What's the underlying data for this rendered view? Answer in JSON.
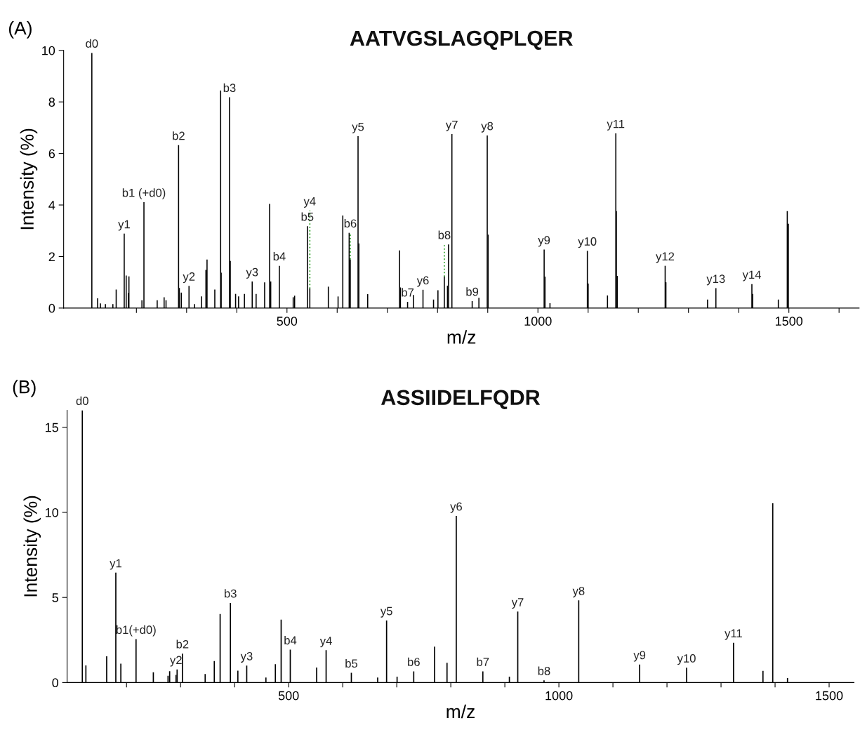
{
  "chart_data": [
    {
      "type": "bar",
      "title": "AATVGSLAGQPLQER",
      "xlabel": "m/z",
      "ylabel": "Intensity (%)",
      "color": "#000000",
      "x": [
        111.2,
        122.7,
        128.3,
        138.2,
        153.1,
        159.7,
        175.7,
        179.6,
        184,
        185.1,
        211,
        215,
        241.4,
        255.2,
        259,
        284,
        285.5,
        289.4,
        304.8,
        315.9,
        329.7,
        338.5,
        340.7,
        356.2,
        367.8,
        368.9,
        385.5,
        387,
        397.6,
        403.6,
        415.2,
        430.7,
        438.5,
        455.5,
        465.4,
        467.6,
        484.8,
        512.4,
        515.2,
        540.6,
        545.5,
        582.4,
        601.8,
        611.2,
        623.9,
        626.1,
        641.6,
        643.2,
        660.8,
        724.3,
        726,
        740.3,
        751.9,
        771,
        792,
        800.8,
        813.5,
        819.8,
        821.9,
        828.6,
        869,
        882.4,
        899,
        900.7,
        1012.4,
        1014.1,
        1024,
        1098.5,
        1100.1,
        1138.6,
        1155.2,
        1156.3,
        1158,
        1253.5,
        1255,
        1338,
        1354.6,
        1426.3,
        1427.9,
        1479,
        1496.8,
        1499
      ],
      "values": [
        9.9,
        0.38,
        0.18,
        0.15,
        0.15,
        0.72,
        2.89,
        1.26,
        0.58,
        1.23,
        0.3,
        4.11,
        0.3,
        0.42,
        0.3,
        6.32,
        0.78,
        0.6,
        0.86,
        0.15,
        0.45,
        1.48,
        1.88,
        0.72,
        8.44,
        1.37,
        8.18,
        1.83,
        0.55,
        0.45,
        0.55,
        1.03,
        0.55,
        1.0,
        4.04,
        1.03,
        1.64,
        0.42,
        0.48,
        3.18,
        0.76,
        0.83,
        0.45,
        3.59,
        2.92,
        1.89,
        6.67,
        2.51,
        0.54,
        2.24,
        0.8,
        0.24,
        0.51,
        0.71,
        0.33,
        0.69,
        1.22,
        0.87,
        2.47,
        6.75,
        0.27,
        0.4,
        6.7,
        2.85,
        2.27,
        1.22,
        0.19,
        2.22,
        0.95,
        0.49,
        6.78,
        3.76,
        1.25,
        1.64,
        1.0,
        0.33,
        0.77,
        0.93,
        0.55,
        0.33,
        3.76,
        3.27
      ],
      "value_labels": [
        "d0",
        null,
        null,
        null,
        null,
        null,
        "y1",
        null,
        null,
        null,
        null,
        "b1 (+d0)",
        null,
        null,
        null,
        "b2",
        null,
        null,
        "y2",
        null,
        null,
        null,
        null,
        null,
        null,
        null,
        "b3",
        null,
        null,
        null,
        null,
        "y3",
        null,
        null,
        null,
        null,
        "b4",
        null,
        null,
        "b5",
        "y4",
        null,
        null,
        null,
        null,
        "b6",
        "y5",
        null,
        null,
        null,
        null,
        "b7",
        null,
        "y6",
        null,
        null,
        "b8",
        null,
        null,
        "y7",
        "b9",
        null,
        "y8",
        null,
        "y9",
        null,
        null,
        "y10",
        null,
        null,
        "y11",
        null,
        null,
        "y12",
        null,
        null,
        "y13",
        "y14",
        null,
        null,
        null,
        null
      ],
      "xlim": [
        55,
        1640
      ],
      "ylim": [
        0,
        10
      ],
      "xticks": [
        {
          "value": 200,
          "label": null
        },
        {
          "value": 300,
          "label": null
        },
        {
          "value": 400,
          "label": null
        },
        500,
        {
          "value": 600,
          "label": null
        },
        {
          "value": 700,
          "label": null
        },
        {
          "value": 800,
          "label": null
        },
        {
          "value": 900,
          "label": null
        },
        1000,
        {
          "value": 1100,
          "label": null
        },
        {
          "value": 1200,
          "label": null
        },
        {
          "value": 1300,
          "label": null
        },
        {
          "value": 1400,
          "label": null
        },
        1500,
        {
          "value": 1600,
          "label": null
        }
      ],
      "yticks": [
        0,
        2,
        4,
        6,
        8,
        10
      ],
      "grid": false,
      "legend": false,
      "annotations": [
        "(A)"
      ]
    },
    {
      "type": "bar",
      "title": "ASSIIDELFQDR",
      "xlabel": "m/z",
      "ylabel": "Intensity (%)",
      "color": "#000000",
      "x": [
        118.2,
        124.8,
        163.3,
        180.2,
        189.5,
        217.6,
        249.6,
        276.8,
        279.8,
        291.6,
        293.6,
        303.4,
        345.5,
        362.4,
        373.2,
        392.2,
        406,
        422.4,
        457.9,
        475.4,
        486.1,
        503,
        551.8,
        569.3,
        616,
        664.7,
        681.2,
        700.6,
        731.4,
        770,
        793,
        810.1,
        859.3,
        908.4,
        923.9,
        972.5,
        1036.7,
        1149.4,
        1236.3,
        1323.2,
        1377.6,
        1395.7,
        1423
      ],
      "values": [
        16.0,
        1.01,
        1.54,
        6.46,
        1.11,
        2.55,
        0.6,
        0.4,
        0.67,
        0.45,
        0.77,
        1.7,
        0.5,
        1.26,
        4.03,
        4.68,
        0.7,
        1.0,
        0.3,
        1.08,
        3.7,
        1.93,
        0.88,
        1.9,
        0.57,
        0.3,
        3.65,
        0.35,
        0.66,
        2.11,
        1.16,
        9.79,
        0.66,
        0.35,
        4.17,
        0.13,
        4.83,
        1.06,
        0.87,
        2.34,
        0.69,
        10.53,
        0.26
      ],
      "value_labels": [
        "d0",
        null,
        null,
        "y1",
        null,
        "b1(+d0)",
        null,
        null,
        null,
        "y2",
        null,
        "b2",
        null,
        null,
        null,
        "b3",
        null,
        "y3",
        null,
        null,
        null,
        "b4",
        null,
        "y4",
        "b5",
        null,
        "y5",
        null,
        "b6",
        null,
        null,
        "y6",
        "b7",
        null,
        "y7",
        "b8",
        "y8",
        "y9",
        "y10",
        "y11",
        null,
        null,
        null
      ],
      "xlim": [
        90,
        1546
      ],
      "ylim": [
        0,
        16
      ],
      "xticks": [
        {
          "value": 200,
          "label": null
        },
        {
          "value": 300,
          "label": null
        },
        {
          "value": 400,
          "label": null
        },
        500,
        {
          "value": 600,
          "label": null
        },
        {
          "value": 700,
          "label": null
        },
        {
          "value": 800,
          "label": null
        },
        {
          "value": 900,
          "label": null
        },
        1000,
        {
          "value": 1100,
          "label": null
        },
        {
          "value": 1200,
          "label": null
        },
        {
          "value": 1300,
          "label": null
        },
        {
          "value": 1400,
          "label": null
        },
        1500
      ],
      "yticks": [
        0,
        5,
        10,
        15
      ],
      "grid": false,
      "legend": false,
      "annotations": [
        "(B)"
      ]
    }
  ]
}
